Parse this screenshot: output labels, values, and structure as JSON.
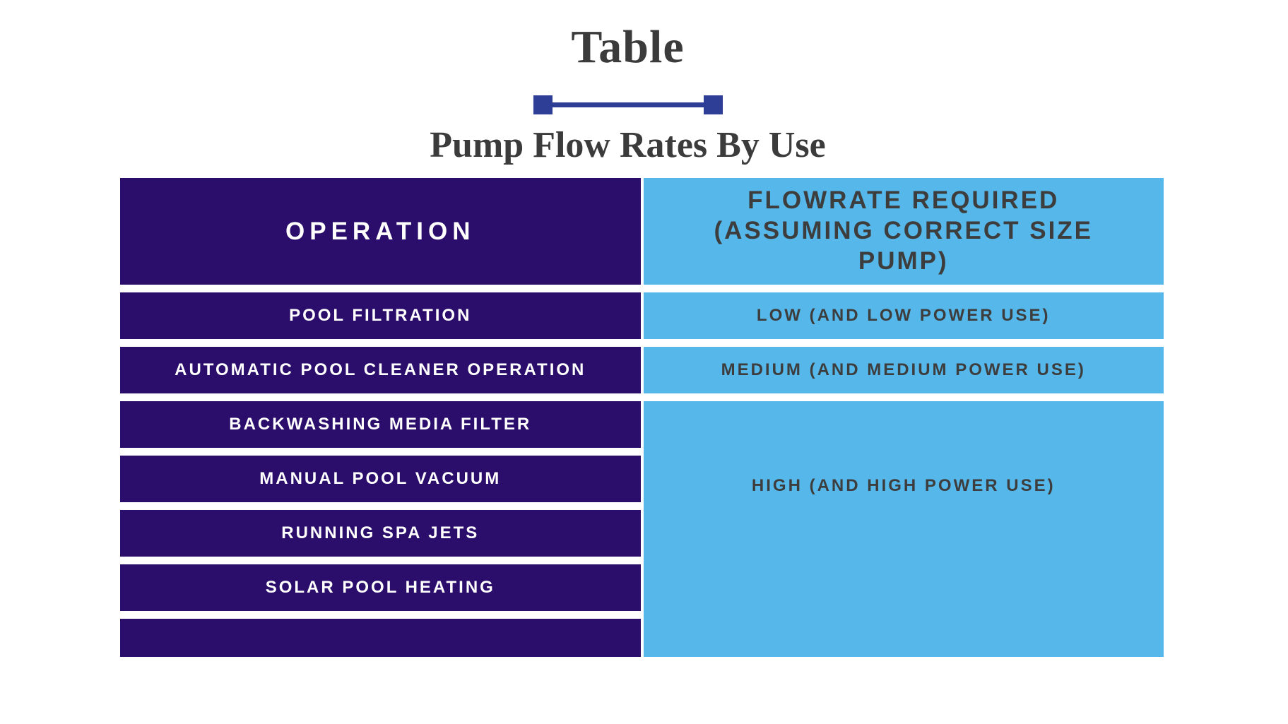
{
  "title": "Table",
  "subtitle": "Pump Flow Rates By Use",
  "colors": {
    "operation_column_bg": "#2B0E6B",
    "flowrate_column_bg": "#56B8EA",
    "divider_accent": "#2E3D96",
    "heading_text": "#3B3B3B",
    "flowrate_text": "#3D3D3D",
    "operation_text": "#FFFFFF"
  },
  "table": {
    "header": {
      "operation": "OPERATION",
      "flowrate": "FLOWRATE REQUIRED (ASSUMING CORRECT SIZE PUMP)"
    },
    "rows": [
      {
        "operation": "POOL FILTRATION",
        "flowrate": "LOW (AND LOW POWER USE)"
      },
      {
        "operation": "AUTOMATIC POOL CLEANER OPERATION",
        "flowrate": "MEDIUM (AND MEDIUM POWER USE)"
      },
      {
        "operation": "BACKWASHING MEDIA FILTER"
      },
      {
        "operation": "MANUAL POOL VACUUM"
      },
      {
        "operation": "RUNNING SPA JETS"
      },
      {
        "operation": "SOLAR POOL HEATING"
      }
    ],
    "merged_flowrate": "HIGH (AND HIGH POWER USE)"
  },
  "chart_data": {
    "type": "table",
    "title": "Table",
    "subtitle": "Pump Flow Rates By Use",
    "columns": [
      "OPERATION",
      "FLOWRATE REQUIRED (ASSUMING CORRECT SIZE PUMP)"
    ],
    "rows": [
      [
        "POOL FILTRATION",
        "LOW (AND LOW POWER USE)"
      ],
      [
        "AUTOMATIC POOL CLEANER OPERATION",
        "MEDIUM (AND MEDIUM POWER USE)"
      ],
      [
        "BACKWASHING MEDIA FILTER",
        "HIGH (AND HIGH POWER USE)"
      ],
      [
        "MANUAL POOL VACUUM",
        "HIGH (AND HIGH POWER USE)"
      ],
      [
        "RUNNING SPA JETS",
        "HIGH (AND HIGH POWER USE)"
      ],
      [
        "SOLAR POOL HEATING",
        "HIGH (AND HIGH POWER USE)"
      ]
    ],
    "layout_hints": {
      "merged_cell": "flowrate column rows 3-6 plus one trailing empty row share a single HIGH cell",
      "trailing_empty_operation_row": true,
      "legend_position": "none",
      "grid": "white gaps between solid cells"
    }
  }
}
